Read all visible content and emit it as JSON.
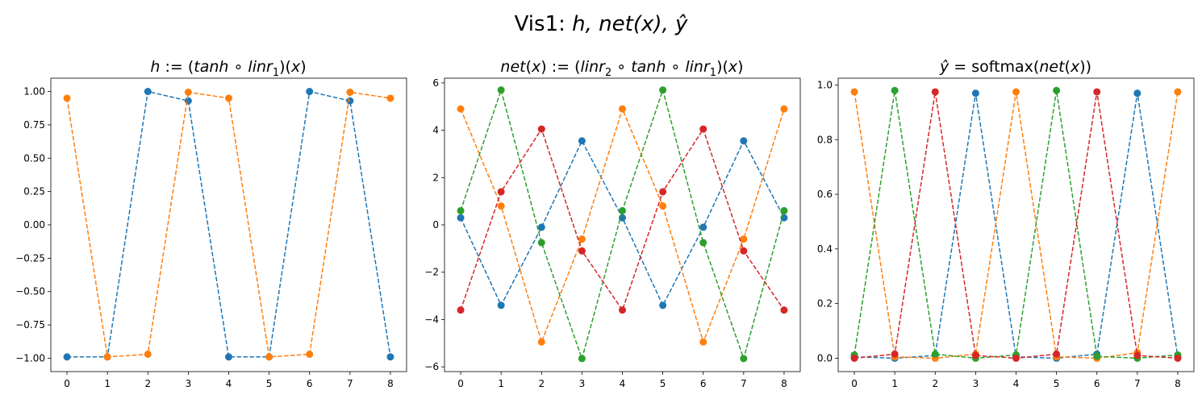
{
  "figure": {
    "suptitle_prefix": "Vis1: ",
    "suptitle_math": "h, net(x), ŷ"
  },
  "chart_data": [
    {
      "type": "line",
      "title": "h := (tanh ∘ linr1)(x)",
      "linestyle": "dashed",
      "marker": "o",
      "xlabel": "",
      "ylabel": "",
      "xlim": [
        -0.4,
        8.4
      ],
      "ylim": [
        -1.1,
        1.1
      ],
      "x": [
        0,
        1,
        2,
        3,
        4,
        5,
        6,
        7,
        8
      ],
      "xticks": [
        "0",
        "1",
        "2",
        "3",
        "4",
        "5",
        "6",
        "7",
        "8"
      ],
      "yticks": [
        -1.0,
        -0.75,
        -0.5,
        -0.25,
        0.0,
        0.25,
        0.5,
        0.75,
        1.0
      ],
      "ytick_labels": [
        "−1.00",
        "−0.75",
        "−0.50",
        "−0.25",
        "0.00",
        "0.25",
        "0.50",
        "0.75",
        "1.00"
      ],
      "series": [
        {
          "color": "#1f77b4",
          "values": [
            -0.99,
            -0.99,
            1.0,
            0.93,
            -0.99,
            -0.99,
            1.0,
            0.93,
            -0.99
          ]
        },
        {
          "color": "#ff7f0e",
          "values": [
            0.95,
            -0.99,
            -0.97,
            0.995,
            0.95,
            -0.99,
            -0.97,
            0.995,
            0.95
          ]
        }
      ]
    },
    {
      "type": "line",
      "title": "net(x) := (linr2 ∘ tanh ∘ linr1)(x)",
      "linestyle": "dashed",
      "marker": "o",
      "xlabel": "",
      "ylabel": "",
      "xlim": [
        -0.4,
        8.4
      ],
      "ylim": [
        -6.2,
        6.2
      ],
      "x": [
        0,
        1,
        2,
        3,
        4,
        5,
        6,
        7,
        8
      ],
      "xticks": [
        "0",
        "1",
        "2",
        "3",
        "4",
        "5",
        "6",
        "7",
        "8"
      ],
      "yticks": [
        -6,
        -4,
        -2,
        0,
        2,
        4,
        6
      ],
      "ytick_labels": [
        "−6",
        "−4",
        "−2",
        "0",
        "2",
        "4",
        "6"
      ],
      "series": [
        {
          "color": "#1f77b4",
          "values": [
            0.3,
            -3.4,
            -0.1,
            3.55,
            0.3,
            -3.4,
            -0.1,
            3.55,
            0.3
          ]
        },
        {
          "color": "#ff7f0e",
          "values": [
            4.9,
            0.8,
            -4.95,
            -0.6,
            4.9,
            0.8,
            -4.95,
            -0.6,
            4.9
          ]
        },
        {
          "color": "#2ca02c",
          "values": [
            0.6,
            5.7,
            -0.75,
            -5.65,
            0.6,
            5.7,
            -0.75,
            -5.65,
            0.6
          ]
        },
        {
          "color": "#d62728",
          "values": [
            -3.6,
            1.4,
            4.05,
            -1.1,
            -3.6,
            1.4,
            4.05,
            -1.1,
            -3.6
          ]
        }
      ]
    },
    {
      "type": "line",
      "title": "ŷ = softmax(net(x))",
      "linestyle": "dashed",
      "marker": "o",
      "xlabel": "",
      "ylabel": "",
      "xlim": [
        -0.4,
        8.4
      ],
      "ylim": [
        -0.049,
        1.025
      ],
      "x": [
        0,
        1,
        2,
        3,
        4,
        5,
        6,
        7,
        8
      ],
      "xticks": [
        "0",
        "1",
        "2",
        "3",
        "4",
        "5",
        "6",
        "7",
        "8"
      ],
      "yticks": [
        0.0,
        0.2,
        0.4,
        0.6,
        0.8,
        1.0
      ],
      "ytick_labels": [
        "0.0",
        "0.2",
        "0.4",
        "0.6",
        "0.8",
        "1.0"
      ],
      "series": [
        {
          "color": "#1f77b4",
          "values": [
            0.005,
            0.0,
            0.01,
            0.97,
            0.005,
            0.0,
            0.015,
            0.97,
            0.005
          ]
        },
        {
          "color": "#ff7f0e",
          "values": [
            0.975,
            0.005,
            0.0,
            0.015,
            0.975,
            0.005,
            0.0,
            0.02,
            0.975
          ]
        },
        {
          "color": "#2ca02c",
          "values": [
            0.012,
            0.98,
            0.015,
            0.0,
            0.012,
            0.98,
            0.007,
            0.0,
            0.012
          ]
        },
        {
          "color": "#d62728",
          "values": [
            0.0,
            0.015,
            0.975,
            0.01,
            0.0,
            0.015,
            0.975,
            0.01,
            0.0
          ]
        }
      ]
    }
  ]
}
